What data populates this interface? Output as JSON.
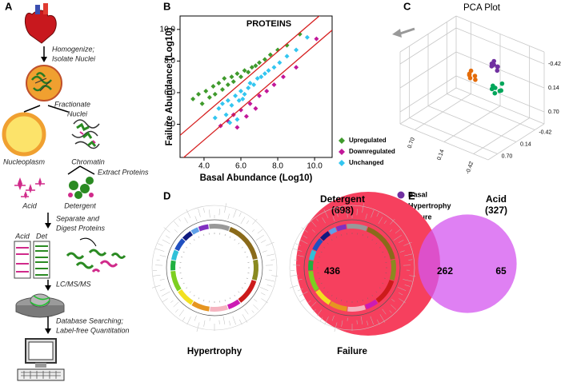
{
  "panel_labels": [
    "A",
    "B",
    "C",
    "D",
    "E"
  ],
  "workflow": {
    "steps": [
      [
        "Homogenize;",
        "Isolate Nuclei"
      ],
      [
        "Fractionate",
        "Nuclei"
      ],
      [
        "Extract Proteins"
      ],
      [
        "Separate and",
        "Digest Proteins"
      ],
      [
        "LC/MS/MS"
      ],
      [
        "Database Searching;",
        "Label-free Quantitation"
      ]
    ],
    "fractions": [
      "Nucleoplasm",
      "Chromatin"
    ],
    "extracts": [
      "Acid",
      "Detergent"
    ],
    "gel_lanes": [
      "Acid",
      "Det"
    ]
  },
  "circos": {
    "labels": [
      "Hypertrophy",
      "Failure"
    ]
  },
  "chart_data": [
    {
      "type": "scatter",
      "title": "PROTEINS",
      "x_label": "Basal Abundance (Log10)",
      "y_label": "Failure Abundance (Log10)",
      "xlim": [
        2.7,
        10.95
      ],
      "ylim": [
        1.9,
        10.85
      ],
      "xticks": [
        {
          "value": 4,
          "label": "4.0"
        },
        {
          "value": 6,
          "label": "6.0"
        },
        {
          "value": 8,
          "label": "8.0"
        },
        {
          "value": 10,
          "label": "10.0"
        }
      ],
      "yticks": [
        {
          "value": 4,
          "label": "4.0"
        },
        {
          "value": 6,
          "label": "6.0"
        },
        {
          "value": 8,
          "label": "8.0"
        },
        {
          "value": 10,
          "label": "10.0"
        }
      ],
      "diagonal_offsets": [
        0.6,
        -1.0
      ],
      "diagonal_color": "#d62020",
      "series": [
        {
          "name": "Upregulated",
          "color": "#3f9a2c",
          "x": [
            3.4,
            3.7,
            3.9,
            4.1,
            4.3,
            4.5,
            4.6,
            4.8,
            5.0,
            5.1,
            5.3,
            5.5,
            5.6,
            5.8,
            6.0,
            6.2,
            6.4,
            6.6,
            6.8,
            7.0,
            7.3,
            7.6,
            8.0,
            8.5,
            9.2
          ],
          "values": [
            5.6,
            5.9,
            5.3,
            6.1,
            5.7,
            6.4,
            5.9,
            6.6,
            6.2,
            6.9,
            6.5,
            7.0,
            6.7,
            7.2,
            7.0,
            7.4,
            7.3,
            7.6,
            7.7,
            7.9,
            8.1,
            8.4,
            8.7,
            9.0,
            9.7
          ]
        },
        {
          "name": "Downregulated",
          "color": "#c2189a",
          "x": [
            4.9,
            5.3,
            5.6,
            5.8,
            6.0,
            6.3,
            6.5,
            6.8,
            7.0,
            7.4,
            7.8,
            8.3,
            9.0,
            10.1
          ],
          "values": [
            3.9,
            4.2,
            4.6,
            3.8,
            4.9,
            4.5,
            5.3,
            5.0,
            5.8,
            6.1,
            6.5,
            7.0,
            7.6,
            9.4
          ]
        },
        {
          "name": "Unchanged",
          "color": "#33c6f0",
          "x": [
            4.6,
            4.8,
            5.0,
            5.2,
            5.3,
            5.5,
            5.7,
            5.9,
            6.0,
            6.2,
            6.4,
            6.5,
            6.7,
            6.9,
            7.1,
            7.3,
            7.5,
            7.8,
            8.1,
            8.5,
            9.0,
            9.6,
            5.4,
            5.8,
            6.1
          ],
          "values": [
            4.4,
            5.0,
            5.3,
            4.6,
            5.5,
            5.2,
            5.8,
            5.5,
            6.1,
            5.9,
            6.3,
            6.6,
            6.5,
            6.9,
            7.0,
            7.2,
            7.4,
            7.6,
            7.9,
            8.3,
            8.7,
            9.5,
            4.1,
            4.3,
            5.6
          ]
        }
      ]
    },
    {
      "type": "scatter3d",
      "title": "PCA Plot",
      "xlim": [
        -0.7,
        0.98
      ],
      "ylim": [
        -0.7,
        0.98
      ],
      "zlim": [
        -0.7,
        0.98
      ],
      "xticks": [
        {
          "value": 0.7,
          "label": "0.70"
        },
        0.14,
        -0.42
      ],
      "yticks": [
        -0.42,
        0.14,
        {
          "value": 0.7,
          "label": "0.70"
        }
      ],
      "zticks": [
        -0.42,
        0.14,
        {
          "value": 0.7,
          "label": "0.70"
        }
      ],
      "series": [
        {
          "name": "Basal",
          "color": "#7030a0",
          "x": [
            -0.25,
            -0.3,
            -0.33,
            -0.27,
            -0.31,
            -0.24,
            -0.35
          ],
          "y": [
            0.1,
            0.18,
            0.12,
            0.2,
            0.08,
            0.15,
            0.16
          ],
          "values": [
            -0.66,
            -0.64,
            -0.58,
            -0.6,
            -0.55,
            -0.62,
            -0.52
          ]
        },
        {
          "name": "Hypertrophy",
          "color": "#e46c0a",
          "x": [
            0.1,
            0.18,
            0.22,
            0.14,
            0.08,
            0.2
          ],
          "y": [
            0.12,
            0.16,
            0.1,
            0.2,
            0.14,
            0.08
          ],
          "values": [
            -0.15,
            -0.18,
            -0.1,
            -0.12,
            -0.08,
            -0.2
          ]
        },
        {
          "name": "Failure",
          "color": "#00a65a",
          "x": [
            -0.3,
            -0.36,
            -0.28,
            -0.4,
            -0.33,
            -0.25,
            -0.38
          ],
          "y": [
            0.14,
            0.1,
            0.18,
            0.12,
            0.2,
            0.16,
            0.06
          ],
          "values": [
            -0.08,
            -0.02,
            -0.14,
            -0.06,
            0.0,
            -0.04,
            -0.18
          ]
        }
      ]
    },
    {
      "type": "venn",
      "sets": [
        {
          "name": "Detergent",
          "size": 698,
          "size_label": "(698)",
          "color": "#f6405e"
        },
        {
          "name": "Acid",
          "size": 327,
          "size_label": "(327)",
          "color": "#d455ef"
        }
      ],
      "regions": {
        "only_a": 436,
        "both": 262,
        "only_b": 65
      }
    }
  ]
}
